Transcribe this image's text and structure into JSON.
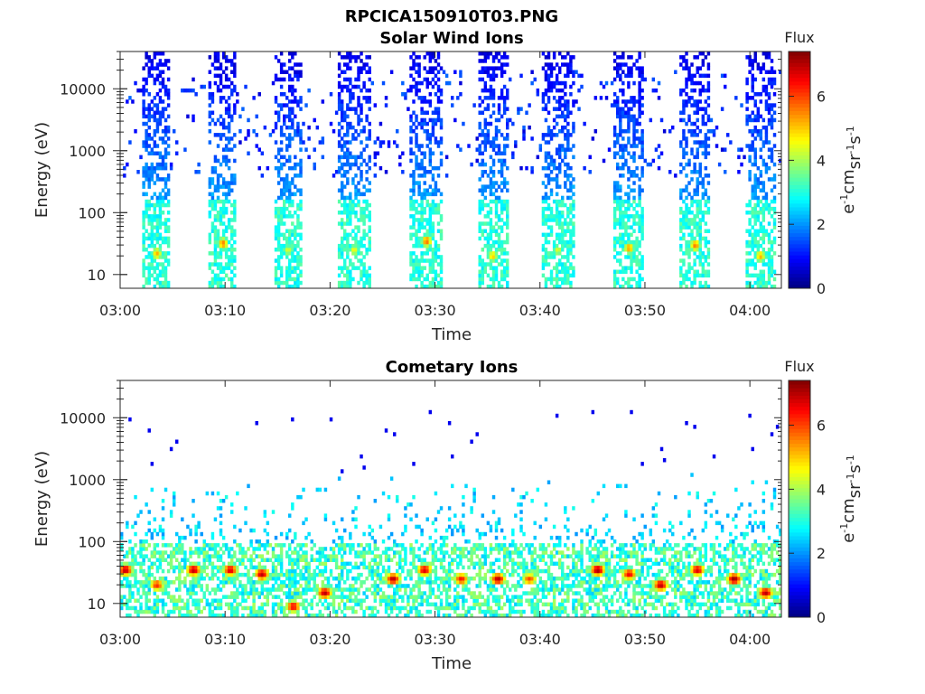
{
  "figure": {
    "title": "RPCICA150910T03.PNG"
  },
  "chart_data": [
    {
      "type": "heatmap",
      "title": "Solar Wind Ions",
      "xlabel": "Time",
      "ylabel": "Energy (eV)",
      "x_ticks": [
        "03:00",
        "03:10",
        "03:20",
        "03:30",
        "03:40",
        "03:50",
        "04:00"
      ],
      "x_range_minutes": [
        0,
        63
      ],
      "y_scale": "log",
      "y_ticks": [
        "10",
        "100",
        "1000",
        "10000"
      ],
      "ylim": [
        6,
        40000
      ],
      "colorbar": {
        "label": "Flux",
        "units": "eV-1cm-2sr-1s-1",
        "range": [
          0,
          7.4
        ],
        "ticks": [
          "0",
          "2",
          "4",
          "6"
        ],
        "colormap": "jet"
      },
      "bursts": [
        {
          "center_min": 3.5,
          "width_min": 2.6,
          "peak_energy_ev": 22,
          "peak_flux": 5.2
        },
        {
          "center_min": 9.8,
          "width_min": 2.6,
          "peak_energy_ev": 32,
          "peak_flux": 5.6
        },
        {
          "center_min": 16.0,
          "width_min": 2.8,
          "peak_energy_ev": 25,
          "peak_flux": 4.4
        },
        {
          "center_min": 22.3,
          "width_min": 3.0,
          "peak_energy_ev": 25,
          "peak_flux": 4.6
        },
        {
          "center_min": 29.2,
          "width_min": 3.2,
          "peak_energy_ev": 35,
          "peak_flux": 5.7
        },
        {
          "center_min": 35.5,
          "width_min": 3.0,
          "peak_energy_ev": 20,
          "peak_flux": 5.0
        },
        {
          "center_min": 41.7,
          "width_min": 3.0,
          "peak_energy_ev": 25,
          "peak_flux": 4.4
        },
        {
          "center_min": 48.5,
          "width_min": 3.0,
          "peak_energy_ev": 27,
          "peak_flux": 5.4
        },
        {
          "center_min": 54.8,
          "width_min": 3.0,
          "peak_energy_ev": 30,
          "peak_flux": 5.6
        },
        {
          "center_min": 61.0,
          "width_min": 2.8,
          "peak_energy_ev": 20,
          "peak_flux": 5.2
        }
      ]
    },
    {
      "type": "heatmap",
      "title": "Cometary Ions",
      "xlabel": "Time",
      "ylabel": "Energy (eV)",
      "x_ticks": [
        "03:00",
        "03:10",
        "03:20",
        "03:30",
        "03:40",
        "03:50",
        "04:00"
      ],
      "x_range_minutes": [
        0,
        63
      ],
      "y_scale": "log",
      "y_ticks": [
        "10",
        "100",
        "1000",
        "10000"
      ],
      "ylim": [
        6,
        40000
      ],
      "colorbar": {
        "label": "Flux",
        "units": "eV-1cm-2sr-1s-1",
        "range": [
          0,
          7.4
        ],
        "ticks": [
          "0",
          "2",
          "4",
          "6"
        ],
        "colormap": "jet"
      },
      "hot_spots": [
        {
          "center_min": 0.5,
          "energy_ev": 35,
          "peak_flux": 7.0
        },
        {
          "center_min": 3.5,
          "energy_ev": 20,
          "peak_flux": 6.2
        },
        {
          "center_min": 7.0,
          "energy_ev": 35,
          "peak_flux": 7.0
        },
        {
          "center_min": 10.5,
          "energy_ev": 35,
          "peak_flux": 6.8
        },
        {
          "center_min": 13.5,
          "energy_ev": 30,
          "peak_flux": 7.0
        },
        {
          "center_min": 16.5,
          "energy_ev": 9,
          "peak_flux": 6.6
        },
        {
          "center_min": 19.5,
          "energy_ev": 15,
          "peak_flux": 7.0
        },
        {
          "center_min": 26.0,
          "energy_ev": 25,
          "peak_flux": 7.0
        },
        {
          "center_min": 29.0,
          "energy_ev": 35,
          "peak_flux": 6.8
        },
        {
          "center_min": 32.5,
          "energy_ev": 25,
          "peak_flux": 6.4
        },
        {
          "center_min": 36.0,
          "energy_ev": 25,
          "peak_flux": 7.0
        },
        {
          "center_min": 39.0,
          "energy_ev": 25,
          "peak_flux": 6.0
        },
        {
          "center_min": 45.5,
          "energy_ev": 35,
          "peak_flux": 7.2
        },
        {
          "center_min": 48.5,
          "energy_ev": 30,
          "peak_flux": 6.6
        },
        {
          "center_min": 51.5,
          "energy_ev": 20,
          "peak_flux": 7.0
        },
        {
          "center_min": 55.0,
          "energy_ev": 35,
          "peak_flux": 6.8
        },
        {
          "center_min": 58.5,
          "energy_ev": 25,
          "peak_flux": 7.2
        },
        {
          "center_min": 61.5,
          "energy_ev": 15,
          "peak_flux": 7.0
        }
      ]
    }
  ]
}
